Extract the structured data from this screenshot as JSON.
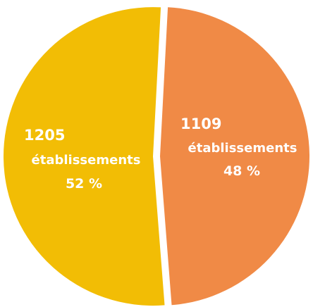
{
  "chart_data": {
    "type": "pie",
    "slices": [
      {
        "count_label": "1109",
        "unit_label": "établissements",
        "percent_label": "48 %",
        "value": 1109,
        "percent": 48,
        "color": "#f08a46"
      },
      {
        "count_label": "1205",
        "unit_label": "établissements",
        "percent_label": "52 %",
        "value": 1205,
        "percent": 52,
        "color": "#f2bd05"
      }
    ],
    "start": "top",
    "direction": "clockwise",
    "exploded_gaps": true
  }
}
